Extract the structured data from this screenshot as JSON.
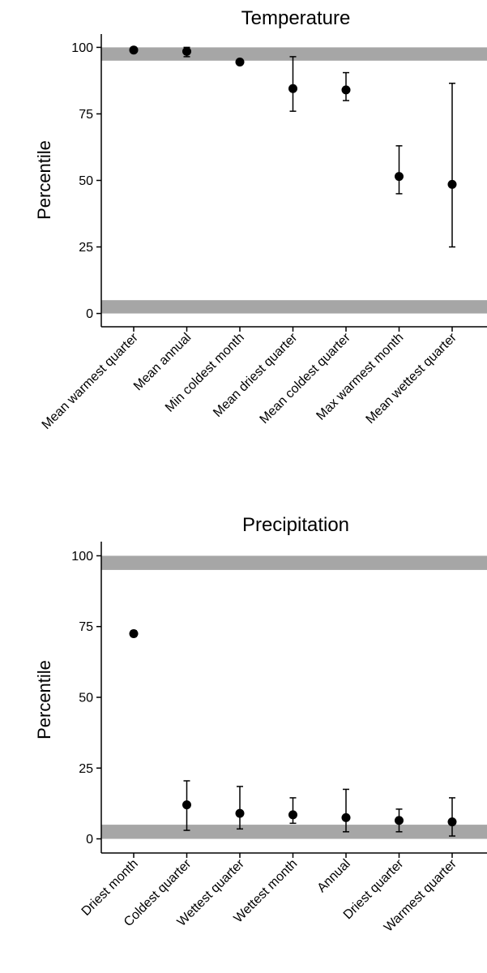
{
  "chart_data": [
    {
      "type": "scatter",
      "title": "Temperature",
      "xlabel": "",
      "ylabel": "Percentile",
      "ylim": [
        -5,
        105
      ],
      "yticks": [
        0,
        25,
        50,
        75,
        100
      ],
      "bands": [
        [
          0,
          5
        ],
        [
          95,
          100
        ]
      ],
      "band_color": "#a6a6a6",
      "grid": false,
      "categories": [
        "Mean warmest quarter",
        "Mean annual",
        "Min coldest month",
        "Mean driest quarter",
        "Mean coldest quarter",
        "Max warmest month",
        "Mean wettest quarter"
      ],
      "values": [
        99,
        98.5,
        94.5,
        84.5,
        84,
        51.5,
        48.5
      ],
      "lower": [
        98.5,
        96.5,
        94,
        76,
        80,
        45,
        25
      ],
      "upper": [
        99.5,
        100,
        95,
        96.5,
        90.5,
        63,
        86.5
      ]
    },
    {
      "type": "scatter",
      "title": "Precipitation",
      "xlabel": "",
      "ylabel": "Percentile",
      "ylim": [
        -5,
        105
      ],
      "yticks": [
        0,
        25,
        50,
        75,
        100
      ],
      "bands": [
        [
          0,
          5
        ],
        [
          95,
          100
        ]
      ],
      "band_color": "#a6a6a6",
      "grid": false,
      "categories": [
        "Driest month",
        "Coldest quarter",
        "Wettest quarter",
        "Wettest month",
        "Annual",
        "Driest quarter",
        "Warmest quarter"
      ],
      "values": [
        72.5,
        12,
        9,
        8.5,
        7.5,
        6.5,
        6
      ],
      "lower": [
        71.5,
        3,
        3.5,
        5.5,
        2.5,
        2.5,
        1
      ],
      "upper": [
        73.5,
        20.5,
        18.5,
        14.5,
        17.5,
        10.5,
        14.5
      ]
    }
  ]
}
